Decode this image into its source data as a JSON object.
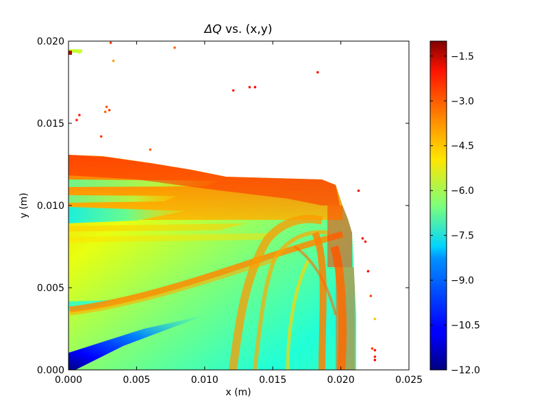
{
  "chart_data": {
    "type": "scatter",
    "title_prefix": "ΔQ",
    "title_suffix": " vs. (x,y)",
    "xlabel": "x (m)",
    "ylabel": "y (m)",
    "xlim": [
      0.0,
      0.025
    ],
    "ylim": [
      0.0,
      0.02
    ],
    "xticks": [
      "0.000",
      "0.005",
      "0.010",
      "0.015",
      "0.020",
      "0.025"
    ],
    "xtick_values": [
      0.0,
      0.005,
      0.01,
      0.015,
      0.02,
      0.025
    ],
    "yticks": [
      "0.000",
      "0.005",
      "0.010",
      "0.015",
      "0.020"
    ],
    "ytick_values": [
      0.0,
      0.005,
      0.01,
      0.015,
      0.02
    ],
    "colorbar": {
      "colormap": "jet",
      "range": [
        -12.0,
        -1.0
      ],
      "ticks": [
        "-1.5",
        "-3.0",
        "-4.5",
        "-6.0",
        "-7.5",
        "-9.0",
        "-10.5",
        "-12.0"
      ],
      "tick_values": [
        -1.5,
        -3.0,
        -4.5,
        -6.0,
        -7.5,
        -9.0,
        -10.5,
        -12.0
      ]
    },
    "grid": false,
    "legend": "none",
    "scattered_points": [
      {
        "x": 0.0008,
        "y": 0.0193,
        "v": -5.8
      },
      {
        "x": 0.0031,
        "y": 0.0199,
        "v": -3.0
      },
      {
        "x": 0.0033,
        "y": 0.0188,
        "v": -4.0
      },
      {
        "x": 0.0078,
        "y": 0.0196,
        "v": -3.5
      },
      {
        "x": 0.0183,
        "y": 0.0181,
        "v": -2.5
      },
      {
        "x": 0.0121,
        "y": 0.017,
        "v": -2.6
      },
      {
        "x": 0.0133,
        "y": 0.0172,
        "v": -2.6
      },
      {
        "x": 0.0137,
        "y": 0.0172,
        "v": -2.4
      },
      {
        "x": 0.0028,
        "y": 0.016,
        "v": -3.2
      },
      {
        "x": 0.003,
        "y": 0.0158,
        "v": -3.0
      },
      {
        "x": 0.0027,
        "y": 0.0157,
        "v": -3.5
      },
      {
        "x": 0.0008,
        "y": 0.0155,
        "v": -2.6
      },
      {
        "x": 0.0006,
        "y": 0.0152,
        "v": -2.8
      },
      {
        "x": 0.0024,
        "y": 0.0142,
        "v": -3.0
      },
      {
        "x": 0.006,
        "y": 0.0134,
        "v": -3.4
      },
      {
        "x": 0.0213,
        "y": 0.0109,
        "v": -2.5
      },
      {
        "x": 0.0216,
        "y": 0.008,
        "v": -2.4
      },
      {
        "x": 0.0218,
        "y": 0.0078,
        "v": -2.6
      },
      {
        "x": 0.022,
        "y": 0.006,
        "v": -2.3
      },
      {
        "x": 0.0225,
        "y": 0.0031,
        "v": -4.5
      },
      {
        "x": 0.0225,
        "y": 0.0012,
        "v": -2.5
      },
      {
        "x": 0.0225,
        "y": 0.0008,
        "v": -2.6
      },
      {
        "x": 0.0225,
        "y": 0.0006,
        "v": -2.4
      },
      {
        "x": 0.0223,
        "y": 0.0013,
        "v": -3.0
      },
      {
        "x": 0.0222,
        "y": 0.0045,
        "v": -3.1
      }
    ]
  }
}
